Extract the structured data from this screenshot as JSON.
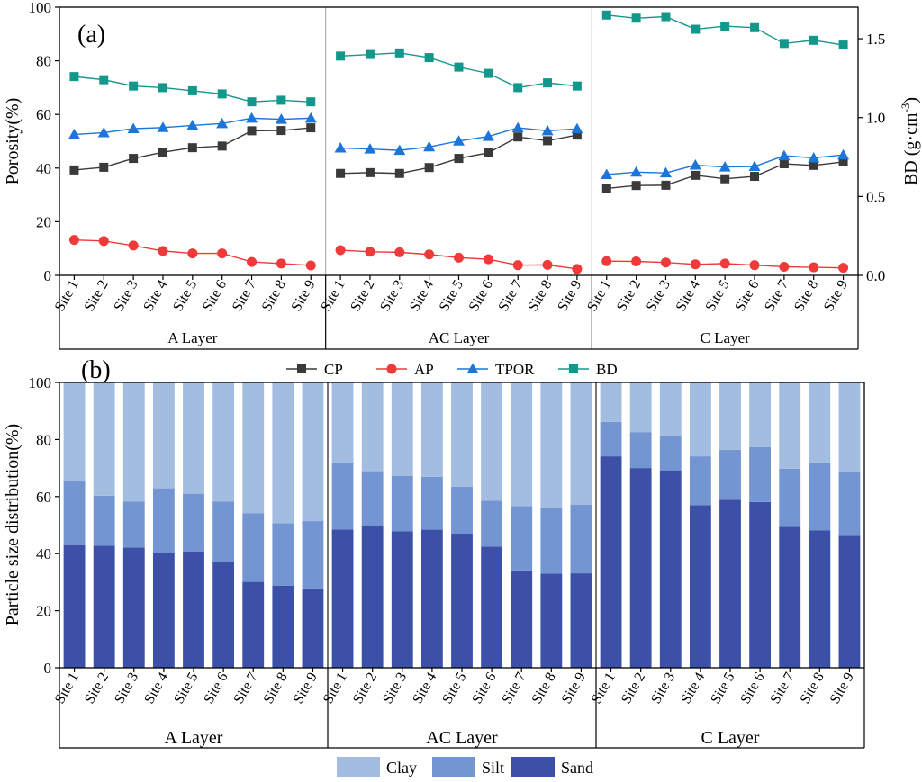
{
  "chart_data": [
    {
      "type": "line",
      "panel_label": "(a)",
      "categories": [
        "Site 1",
        "Site 2",
        "Site 3",
        "Site 4",
        "Site 5",
        "Site 6",
        "Site 7",
        "Site 8",
        "Site 9"
      ],
      "groups": [
        "A Layer",
        "AC Layer",
        "C Layer"
      ],
      "ylabel": "Porosity(%)",
      "ylim": [
        0,
        100
      ],
      "yticks": [
        "0",
        "20",
        "40",
        "60",
        "80",
        "100"
      ],
      "y2label_main": "BD (g·cm",
      "y2label_sup": "-3",
      "y2label_close": ")",
      "y2lim": [
        0,
        1.7
      ],
      "y2ticks": [
        "0.0",
        "0.5",
        "1.0",
        "1.5"
      ],
      "series": [
        {
          "name": "CP",
          "color": "#3a3a3a",
          "marker": "square",
          "axis": "left",
          "values": [
            [
              39.3,
              40.3,
              43.6,
              45.9,
              47.6,
              48.2,
              53.9,
              54.0,
              55.0
            ],
            [
              38.0,
              38.3,
              38.0,
              40.2,
              43.6,
              45.7,
              51.6,
              50.2,
              52.3
            ],
            [
              32.4,
              33.5,
              33.6,
              37.3,
              36.0,
              36.9,
              41.6,
              41.0,
              42.3
            ]
          ]
        },
        {
          "name": "AP",
          "color": "#f03a3a",
          "marker": "circle",
          "axis": "left",
          "values": [
            [
              13.2,
              12.8,
              11.1,
              9.1,
              8.2,
              8.2,
              5.0,
              4.4,
              3.7
            ],
            [
              9.4,
              8.8,
              8.6,
              7.8,
              6.6,
              6.0,
              3.8,
              3.9,
              2.4
            ],
            [
              5.3,
              5.2,
              4.8,
              4.1,
              4.4,
              3.8,
              3.2,
              3.0,
              2.8
            ]
          ]
        },
        {
          "name": "TPOR",
          "color": "#1c75d8",
          "marker": "triangle",
          "axis": "left",
          "values": [
            [
              52.5,
              53.2,
              54.7,
              55.1,
              55.9,
              56.6,
              58.6,
              58.2,
              58.6
            ],
            [
              47.5,
              47.1,
              46.6,
              47.9,
              50.1,
              51.8,
              55.0,
              53.9,
              54.6
            ],
            [
              37.6,
              38.5,
              38.2,
              41.1,
              40.4,
              40.6,
              44.6,
              43.8,
              44.9
            ]
          ]
        },
        {
          "name": "BD",
          "color": "#12988a",
          "marker": "square",
          "axis": "right",
          "values": [
            [
              1.26,
              1.24,
              1.2,
              1.19,
              1.17,
              1.15,
              1.1,
              1.11,
              1.1
            ],
            [
              1.39,
              1.4,
              1.41,
              1.38,
              1.32,
              1.28,
              1.19,
              1.22,
              1.2
            ],
            [
              1.65,
              1.63,
              1.64,
              1.56,
              1.58,
              1.57,
              1.47,
              1.49,
              1.46
            ]
          ]
        }
      ],
      "legend": [
        "CP",
        "AP",
        "TPOR",
        "BD"
      ]
    },
    {
      "type": "bar",
      "stacked": true,
      "panel_label": "(b)",
      "categories": [
        "Site 1",
        "Site 2",
        "Site 3",
        "Site 4",
        "Site 5",
        "Site 6",
        "Site 7",
        "Site 8",
        "Site 9"
      ],
      "groups": [
        "A Layer",
        "AC Layer",
        "C Layer"
      ],
      "ylabel": "Particle size distribution(%)",
      "ylim": [
        0,
        100
      ],
      "yticks": [
        "0",
        "20",
        "40",
        "60",
        "80",
        "100"
      ],
      "series": [
        {
          "name": "Sand",
          "color": "#3d50a8",
          "values": [
            [
              43.0,
              42.8,
              42.1,
              40.3,
              40.8,
              37.0,
              30.1,
              28.8,
              27.8
            ],
            [
              48.5,
              49.6,
              47.8,
              48.4,
              47.0,
              42.5,
              34.1,
              33.0,
              33.1
            ],
            [
              74.1,
              70.0,
              69.2,
              57.0,
              58.9,
              58.1,
              49.4,
              48.1,
              46.2
            ]
          ]
        },
        {
          "name": "Silt",
          "color": "#7395d2",
          "values": [
            [
              22.6,
              17.5,
              16.2,
              22.6,
              20.2,
              21.3,
              24.0,
              21.9,
              23.6
            ],
            [
              23.1,
              19.3,
              19.5,
              18.5,
              16.4,
              16.1,
              22.6,
              23.0,
              24.1
            ],
            [
              12.1,
              12.6,
              12.2,
              17.1,
              17.5,
              19.2,
              20.4,
              23.9,
              22.3
            ]
          ]
        },
        {
          "name": "Clay",
          "color": "#a3bde0",
          "values": [
            [
              34.4,
              39.7,
              41.7,
              37.1,
              39.0,
              41.7,
              45.9,
              49.3,
              48.6
            ],
            [
              28.4,
              31.1,
              32.7,
              33.1,
              36.6,
              41.4,
              43.3,
              44.0,
              42.8
            ],
            [
              13.8,
              17.4,
              18.6,
              25.9,
              23.6,
              22.7,
              30.2,
              28.0,
              31.5
            ]
          ]
        }
      ],
      "legend": [
        "Clay",
        "Silt",
        "Sand"
      ]
    }
  ]
}
